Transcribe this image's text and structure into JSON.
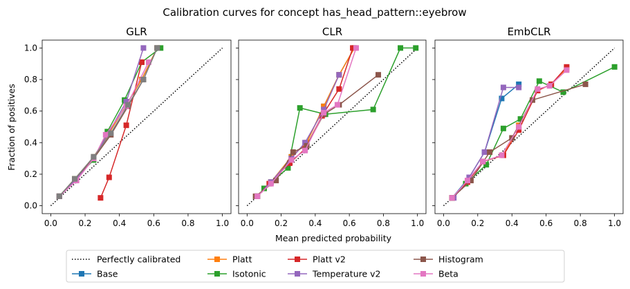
{
  "figure": {
    "title": "Calibration curves for concept has_head_pattern::eyebrow",
    "xlabel": "Mean predicted probability",
    "ylabel": "Fraction of positives"
  },
  "legend": {
    "placement": "bottom-center",
    "entries": [
      {
        "name": "Perfectly calibrated",
        "color": "#000000",
        "style": "dotted"
      },
      {
        "name": "Base",
        "color": "#1f77b4",
        "style": "line-square"
      },
      {
        "name": "Platt",
        "color": "#ff7f0e",
        "style": "line-square"
      },
      {
        "name": "Isotonic",
        "color": "#2ca02c",
        "style": "line-square"
      },
      {
        "name": "Platt v2",
        "color": "#d62728",
        "style": "line-square"
      },
      {
        "name": "Temperature v2",
        "color": "#9467bd",
        "style": "line-square"
      },
      {
        "name": "Histogram",
        "color": "#8c564b",
        "style": "line-square"
      },
      {
        "name": "Beta",
        "color": "#e377c2",
        "style": "line-square"
      }
    ]
  },
  "chart_data": [
    {
      "type": "line",
      "title": "GLR",
      "xlabel": "",
      "ylabel": "Fraction of positives",
      "xlim": [
        -0.05,
        1.05
      ],
      "ylim": [
        -0.05,
        1.05
      ],
      "xticks": [
        "0.0",
        "0.2",
        "0.4",
        "0.6",
        "0.8",
        "1.0"
      ],
      "yticks": [
        "0.0",
        "0.2",
        "0.4",
        "0.6",
        "0.8",
        "1.0"
      ],
      "series": [
        {
          "name": "Perfectly calibrated",
          "color": "#000000",
          "x": [
            0,
            1
          ],
          "y": [
            0,
            1
          ]
        },
        {
          "name": "Base",
          "color": "#1f77b4",
          "x": [
            0.05,
            0.14,
            0.25,
            0.34,
            0.44,
            0.53,
            0.62
          ],
          "y": [
            0.06,
            0.17,
            0.31,
            0.46,
            0.64,
            0.8,
            1.0
          ]
        },
        {
          "name": "Platt",
          "color": "#ff7f0e",
          "x": [
            0.05,
            0.14,
            0.25,
            0.34,
            0.44,
            0.53,
            0.62
          ],
          "y": [
            0.06,
            0.17,
            0.31,
            0.46,
            0.64,
            0.8,
            1.0
          ]
        },
        {
          "name": "Isotonic",
          "color": "#2ca02c",
          "x": [
            0.05,
            0.14,
            0.25,
            0.33,
            0.43,
            0.53,
            0.64
          ],
          "y": [
            0.06,
            0.17,
            0.29,
            0.47,
            0.67,
            0.91,
            1.0
          ]
        },
        {
          "name": "Platt v2",
          "color": "#d62728",
          "x": [
            0.29,
            0.34,
            0.44,
            0.53
          ],
          "y": [
            0.05,
            0.18,
            0.51,
            0.91
          ]
        },
        {
          "name": "Temperature v2",
          "color": "#9467bd",
          "x": [
            0.05,
            0.14,
            0.25,
            0.33,
            0.44,
            0.54
          ],
          "y": [
            0.06,
            0.16,
            0.3,
            0.45,
            0.66,
            1.0
          ]
        },
        {
          "name": "Histogram",
          "color": "#8c564b",
          "x": [
            0.05,
            0.14,
            0.25,
            0.35,
            0.45,
            0.54,
            0.62
          ],
          "y": [
            0.06,
            0.17,
            0.3,
            0.45,
            0.63,
            0.8,
            1.0
          ]
        },
        {
          "name": "Beta",
          "color": "#e377c2",
          "x": [
            0.05,
            0.15,
            0.25,
            0.32,
            0.44,
            0.57
          ],
          "y": [
            0.06,
            0.16,
            0.3,
            0.45,
            0.63,
            0.91
          ]
        },
        {
          "name": "",
          "color": "#7f7f7f",
          "x": [
            0.05,
            0.14,
            0.25,
            0.35,
            0.45,
            0.54,
            0.62
          ],
          "y": [
            0.06,
            0.17,
            0.31,
            0.46,
            0.64,
            0.8,
            1.0
          ]
        }
      ]
    },
    {
      "type": "line",
      "title": "CLR",
      "xlabel": "Mean predicted probability",
      "ylabel": "",
      "xlim": [
        -0.05,
        1.05
      ],
      "ylim": [
        -0.05,
        1.05
      ],
      "xticks": [
        "0.0",
        "0.2",
        "0.4",
        "0.6",
        "0.8",
        "1.0"
      ],
      "yticks": [],
      "series": [
        {
          "name": "Perfectly calibrated",
          "color": "#000000",
          "x": [
            0,
            1
          ],
          "y": [
            0,
            1
          ]
        },
        {
          "name": "Base",
          "color": "#1f77b4",
          "x": [
            0.06,
            0.14,
            0.26,
            0.35,
            0.45,
            0.54,
            0.63
          ],
          "y": [
            0.06,
            0.15,
            0.31,
            0.4,
            0.63,
            0.83,
            1.0
          ]
        },
        {
          "name": "Platt",
          "color": "#ff7f0e",
          "x": [
            0.06,
            0.14,
            0.26,
            0.35,
            0.45,
            0.54,
            0.63
          ],
          "y": [
            0.06,
            0.15,
            0.31,
            0.4,
            0.63,
            0.83,
            1.0
          ]
        },
        {
          "name": "Isotonic",
          "color": "#2ca02c",
          "x": [
            0.06,
            0.1,
            0.24,
            0.31,
            0.46,
            0.74,
            0.9,
            0.99
          ],
          "y": [
            0.06,
            0.11,
            0.24,
            0.62,
            0.58,
            0.61,
            1.0,
            1.0
          ]
        },
        {
          "name": "Platt v2",
          "color": "#d62728",
          "x": [
            0.06,
            0.13,
            0.25,
            0.34,
            0.44,
            0.54,
            0.62
          ],
          "y": [
            0.06,
            0.14,
            0.27,
            0.36,
            0.57,
            0.74,
            1.0
          ]
        },
        {
          "name": "Temperature v2",
          "color": "#9467bd",
          "x": [
            0.06,
            0.14,
            0.26,
            0.34,
            0.45,
            0.54
          ],
          "y": [
            0.06,
            0.15,
            0.3,
            0.4,
            0.61,
            0.83
          ]
        },
        {
          "name": "Histogram",
          "color": "#8c564b",
          "x": [
            0.05,
            0.17,
            0.27,
            0.35,
            0.45,
            0.54,
            0.77
          ],
          "y": [
            0.06,
            0.16,
            0.34,
            0.38,
            0.58,
            0.64,
            0.83
          ]
        },
        {
          "name": "Beta",
          "color": "#e377c2",
          "x": [
            0.06,
            0.14,
            0.26,
            0.34,
            0.45,
            0.53,
            0.64
          ],
          "y": [
            0.06,
            0.14,
            0.29,
            0.35,
            0.59,
            0.64,
            1.0
          ]
        }
      ]
    },
    {
      "type": "line",
      "title": "EmbCLR",
      "xlabel": "",
      "ylabel": "",
      "xlim": [
        -0.05,
        1.05
      ],
      "ylim": [
        -0.05,
        1.05
      ],
      "xticks": [
        "0.0",
        "0.2",
        "0.4",
        "0.6",
        "0.8",
        "1.0"
      ],
      "yticks": [],
      "series": [
        {
          "name": "Perfectly calibrated",
          "color": "#000000",
          "x": [
            0,
            1
          ],
          "y": [
            0,
            1
          ]
        },
        {
          "name": "Base",
          "color": "#1f77b4",
          "x": [
            0.05,
            0.15,
            0.24,
            0.34,
            0.44
          ],
          "y": [
            0.05,
            0.18,
            0.34,
            0.68,
            0.77
          ]
        },
        {
          "name": "Platt",
          "color": "#ff7f0e",
          "x": [
            0.05,
            0.14,
            0.23,
            0.35,
            0.44,
            0.55,
            0.63,
            0.72
          ],
          "y": [
            0.05,
            0.15,
            0.28,
            0.32,
            0.51,
            0.73,
            0.77,
            0.87
          ]
        },
        {
          "name": "Isotonic",
          "color": "#2ca02c",
          "x": [
            0.05,
            0.13,
            0.25,
            0.35,
            0.45,
            0.56,
            0.7,
            1.0
          ],
          "y": [
            0.05,
            0.14,
            0.26,
            0.49,
            0.55,
            0.79,
            0.72,
            0.88
          ]
        },
        {
          "name": "Platt v2",
          "color": "#d62728",
          "x": [
            0.05,
            0.14,
            0.23,
            0.35,
            0.44,
            0.55,
            0.63,
            0.72
          ],
          "y": [
            0.05,
            0.15,
            0.28,
            0.32,
            0.48,
            0.73,
            0.77,
            0.88
          ]
        },
        {
          "name": "Temperature v2",
          "color": "#9467bd",
          "x": [
            0.06,
            0.15,
            0.24,
            0.35,
            0.44
          ],
          "y": [
            0.05,
            0.18,
            0.34,
            0.75,
            0.75
          ]
        },
        {
          "name": "Histogram",
          "color": "#8c564b",
          "x": [
            0.05,
            0.16,
            0.27,
            0.4,
            0.52,
            0.83
          ],
          "y": [
            0.05,
            0.16,
            0.34,
            0.43,
            0.67,
            0.77
          ]
        },
        {
          "name": "Beta",
          "color": "#e377c2",
          "x": [
            0.05,
            0.14,
            0.23,
            0.34,
            0.44,
            0.55,
            0.62,
            0.72
          ],
          "y": [
            0.05,
            0.16,
            0.28,
            0.32,
            0.5,
            0.74,
            0.76,
            0.86
          ]
        }
      ]
    }
  ]
}
